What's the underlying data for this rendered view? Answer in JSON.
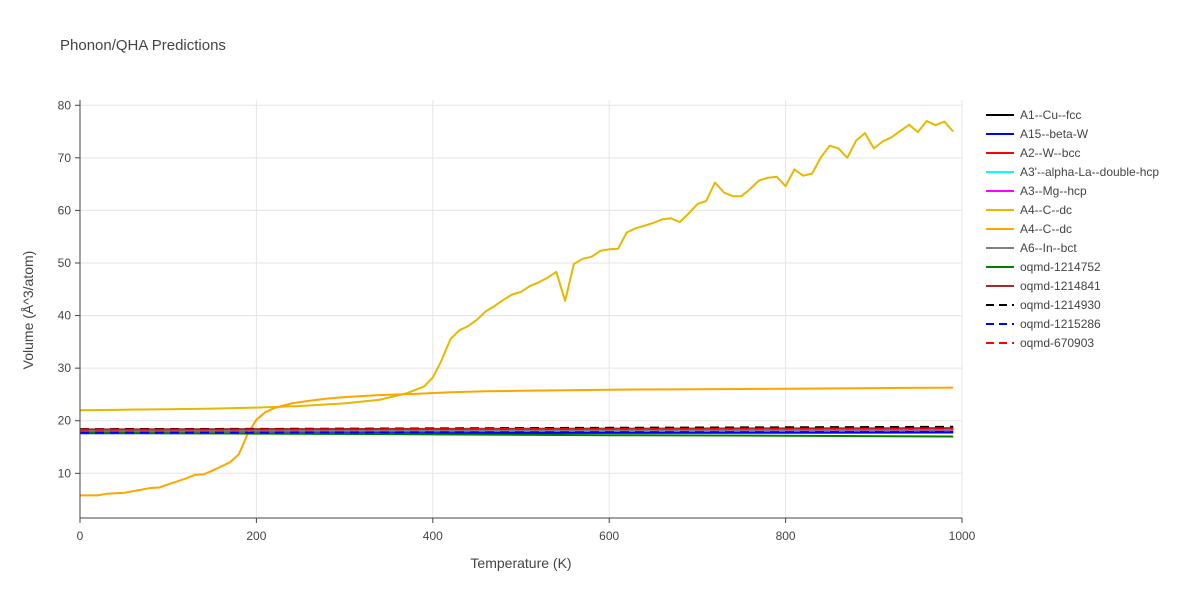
{
  "chart_data": {
    "type": "line",
    "title": "Phonon/QHA Predictions",
    "xlabel": "Temperature (K)",
    "ylabel": "Volume (Å^3/atom)",
    "xlim": [
      0,
      1000
    ],
    "ylim": [
      1.5,
      81
    ],
    "xticks": [
      0,
      200,
      400,
      600,
      800,
      1000
    ],
    "yticks": [
      10,
      20,
      30,
      40,
      50,
      60,
      70,
      80
    ],
    "grid": true,
    "legend_position": "right",
    "series": [
      {
        "name": "A1--Cu--fcc",
        "color": "#000000",
        "dash": "solid",
        "x": [
          0,
          200,
          400,
          600,
          800,
          990
        ],
        "y": [
          18.2,
          18.25,
          18.3,
          18.38,
          18.45,
          18.55
        ]
      },
      {
        "name": "A15--beta-W",
        "color": "#0000ff",
        "dash": "solid",
        "x": [
          0,
          200,
          400,
          600,
          800,
          990
        ],
        "y": [
          17.6,
          17.62,
          17.65,
          17.68,
          17.72,
          17.76
        ]
      },
      {
        "name": "A2--W--bcc",
        "color": "#ff0000",
        "dash": "solid",
        "x": [
          0,
          200,
          400,
          600,
          800,
          990
        ],
        "y": [
          18.0,
          18.02,
          18.05,
          18.08,
          18.1,
          18.13
        ]
      },
      {
        "name": "A3'--alpha-La--double-hcp",
        "color": "#00ffff",
        "dash": "solid",
        "x": [
          0,
          200,
          400,
          600,
          800,
          990
        ],
        "y": [
          18.1,
          18.12,
          18.15,
          18.18,
          18.22,
          18.25
        ]
      },
      {
        "name": "A3--Mg--hcp",
        "color": "#ff00ff",
        "dash": "solid",
        "x": [
          0,
          200,
          400,
          600,
          800,
          990
        ],
        "y": [
          18.05,
          18.08,
          18.1,
          18.13,
          18.17,
          18.2
        ]
      },
      {
        "name": "A4--C--dc",
        "color": "#e6b800",
        "dash": "solid",
        "x": [
          0,
          50,
          100,
          150,
          200,
          250,
          300,
          340,
          370,
          390,
          400,
          410,
          420,
          430,
          440,
          450,
          460,
          470,
          480,
          490,
          500,
          510,
          520,
          530,
          540,
          550,
          560,
          570,
          580,
          590,
          600,
          610,
          620,
          630,
          640,
          650,
          660,
          670,
          680,
          690,
          700,
          710,
          720,
          730,
          740,
          750,
          760,
          770,
          780,
          790,
          800,
          810,
          820,
          830,
          840,
          850,
          860,
          870,
          880,
          890,
          900,
          910,
          920,
          930,
          940,
          950,
          960,
          970,
          980,
          990
        ],
        "y": [
          22.0,
          22.1,
          22.2,
          22.3,
          22.5,
          22.8,
          23.3,
          24.0,
          25.2,
          26.5,
          28.2,
          31.5,
          35.5,
          37.2,
          38.0,
          39.2,
          40.8,
          41.8,
          43.0,
          44.0,
          44.5,
          45.6,
          46.3,
          47.2,
          48.3,
          42.8,
          49.8,
          50.8,
          51.2,
          52.3,
          52.6,
          52.7,
          55.8,
          56.6,
          57.1,
          57.6,
          58.3,
          58.5,
          57.8,
          59.4,
          61.2,
          61.8,
          65.3,
          63.4,
          62.7,
          62.7,
          64.1,
          65.7,
          66.2,
          66.4,
          64.6,
          67.8,
          66.6,
          67.0,
          70.1,
          72.3,
          71.8,
          70.0,
          73.3,
          74.7,
          71.8,
          73.1,
          73.9,
          75.1,
          76.3,
          74.9,
          77.0,
          76.2,
          76.9,
          75.0
        ]
      },
      {
        "name": "A4--C--dc",
        "color": "#ffa500",
        "dash": "solid",
        "x": [
          0,
          20,
          30,
          50,
          70,
          80,
          90,
          100,
          120,
          130,
          140,
          150,
          160,
          170,
          180,
          190,
          200,
          210,
          220,
          240,
          260,
          280,
          300,
          340,
          380,
          420,
          460,
          500,
          550,
          600,
          700,
          800,
          900,
          990
        ],
        "y": [
          5.8,
          5.8,
          6.1,
          6.3,
          6.9,
          7.2,
          7.3,
          7.9,
          9.0,
          9.7,
          9.8,
          10.5,
          11.3,
          12.1,
          13.6,
          17.5,
          20.2,
          21.6,
          22.4,
          23.3,
          23.8,
          24.2,
          24.5,
          24.9,
          25.1,
          25.4,
          25.6,
          25.7,
          25.8,
          25.9,
          26.0,
          26.1,
          26.2,
          26.3
        ]
      },
      {
        "name": "A6--In--bct",
        "color": "#808080",
        "dash": "solid",
        "x": [
          0,
          200,
          400,
          600,
          800,
          990
        ],
        "y": [
          18.15,
          18.18,
          18.2,
          18.23,
          18.26,
          18.3
        ]
      },
      {
        "name": "oqmd-1214752",
        "color": "#008000",
        "dash": "solid",
        "x": [
          0,
          200,
          400,
          600,
          800,
          990
        ],
        "y": [
          17.7,
          17.55,
          17.4,
          17.25,
          17.15,
          17.0
        ]
      },
      {
        "name": "oqmd-1214841",
        "color": "#a52a2a",
        "dash": "solid",
        "x": [
          0,
          200,
          400,
          600,
          800,
          990
        ],
        "y": [
          18.35,
          18.4,
          18.45,
          18.5,
          18.55,
          18.6
        ]
      },
      {
        "name": "oqmd-1214930",
        "color": "#000000",
        "dash": "dash",
        "x": [
          0,
          200,
          400,
          600,
          800,
          990
        ],
        "y": [
          18.4,
          18.45,
          18.55,
          18.65,
          18.75,
          18.85
        ]
      },
      {
        "name": "oqmd-1215286",
        "color": "#0000ff",
        "dash": "dash",
        "x": [
          0,
          200,
          400,
          600,
          800,
          990
        ],
        "y": [
          17.75,
          17.75,
          17.78,
          17.8,
          17.82,
          17.85
        ]
      },
      {
        "name": "oqmd-670903",
        "color": "#ff0000",
        "dash": "dash",
        "x": [
          0,
          200,
          400,
          600,
          800,
          990
        ],
        "y": [
          18.3,
          18.35,
          18.4,
          18.45,
          18.5,
          18.55
        ]
      }
    ]
  }
}
